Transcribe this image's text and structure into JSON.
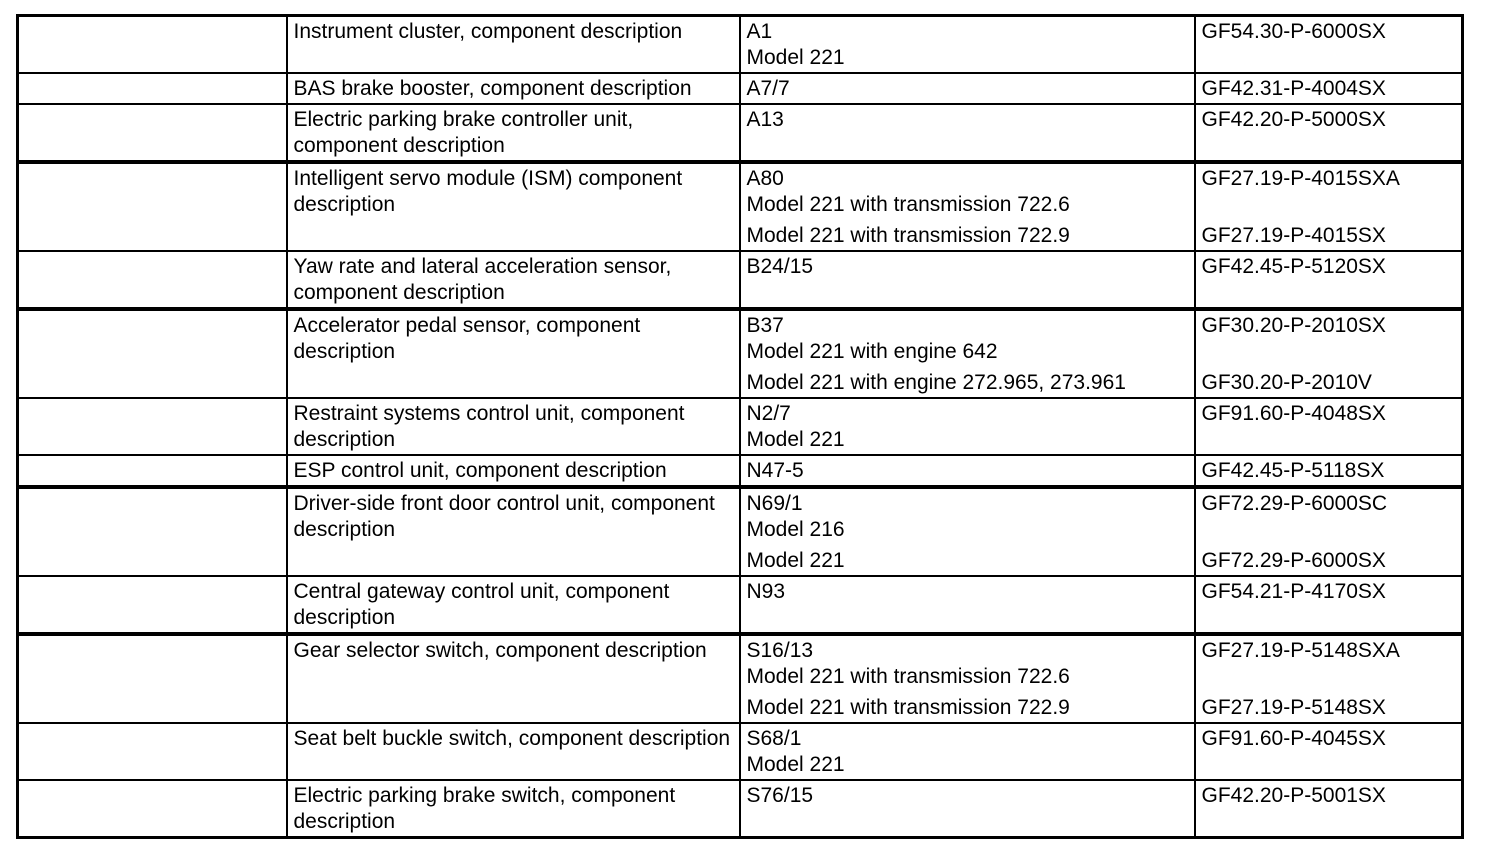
{
  "colors": {
    "background": "#ffffff",
    "text": "#000000",
    "border": "#000000"
  },
  "table": {
    "column_names": [
      "empty",
      "component-description",
      "designation-model",
      "document-code"
    ],
    "rows": [
      {
        "description": "Instrument cluster, component description",
        "designation_paragraphs": [
          [
            "A1",
            "Model 221"
          ]
        ],
        "code_paragraphs": [
          [
            "GF54.30-P-6000SX"
          ]
        ],
        "group_start": false
      },
      {
        "description": "BAS brake booster, component description",
        "designation_paragraphs": [
          [
            "A7/7"
          ]
        ],
        "code_paragraphs": [
          [
            "GF42.31-P-4004SX"
          ]
        ],
        "group_start": false
      },
      {
        "description": "Electric parking brake controller unit, component description",
        "designation_paragraphs": [
          [
            "A13"
          ]
        ],
        "code_paragraphs": [
          [
            "GF42.20-P-5000SX"
          ]
        ],
        "group_start": false
      },
      {
        "description": "Intelligent servo module (ISM) component description",
        "designation_paragraphs": [
          [
            "A80",
            "Model 221 with transmission 722.6"
          ],
          [
            "Model 221 with transmission 722.9"
          ]
        ],
        "code_paragraphs": [
          [
            "GF27.19-P-4015SXA",
            ""
          ],
          [
            "GF27.19-P-4015SX"
          ]
        ],
        "group_start": true
      },
      {
        "description": "Yaw rate and lateral acceleration sensor, component description",
        "designation_paragraphs": [
          [
            "B24/15"
          ]
        ],
        "code_paragraphs": [
          [
            "GF42.45-P-5120SX"
          ]
        ],
        "group_start": false
      },
      {
        "description": "Accelerator pedal sensor, component description",
        "designation_paragraphs": [
          [
            "B37",
            "Model 221 with engine 642"
          ],
          [
            "Model 221 with engine 272.965, 273.961"
          ]
        ],
        "code_paragraphs": [
          [
            "GF30.20-P-2010SX",
            ""
          ],
          [
            "GF30.20-P-2010V"
          ]
        ],
        "group_start": true
      },
      {
        "description": "Restraint systems control unit, component description",
        "designation_paragraphs": [
          [
            "N2/7",
            "Model 221"
          ]
        ],
        "code_paragraphs": [
          [
            "GF91.60-P-4048SX"
          ]
        ],
        "group_start": false
      },
      {
        "description": "ESP control unit, component description",
        "designation_paragraphs": [
          [
            "N47-5"
          ]
        ],
        "code_paragraphs": [
          [
            "GF42.45-P-5118SX"
          ]
        ],
        "group_start": false
      },
      {
        "description": "Driver-side front door control unit, component description",
        "designation_paragraphs": [
          [
            "N69/1",
            "Model 216"
          ],
          [
            "Model 221"
          ]
        ],
        "code_paragraphs": [
          [
            "GF72.29-P-6000SC",
            ""
          ],
          [
            "GF72.29-P-6000SX"
          ]
        ],
        "group_start": true
      },
      {
        "description": "Central gateway control unit, component description",
        "designation_paragraphs": [
          [
            "N93"
          ]
        ],
        "code_paragraphs": [
          [
            "GF54.21-P-4170SX"
          ]
        ],
        "group_start": false
      },
      {
        "description": "Gear selector switch, component description",
        "designation_paragraphs": [
          [
            "S16/13",
            "Model 221 with transmission 722.6"
          ],
          [
            "Model 221 with transmission 722.9"
          ]
        ],
        "code_paragraphs": [
          [
            "GF27.19-P-5148SXA",
            ""
          ],
          [
            "GF27.19-P-5148SX"
          ]
        ],
        "group_start": true
      },
      {
        "description": "Seat belt buckle switch, component description",
        "designation_paragraphs": [
          [
            "S68/1",
            "Model 221"
          ]
        ],
        "code_paragraphs": [
          [
            "GF91.60-P-4045SX"
          ]
        ],
        "group_start": false
      },
      {
        "description": "Electric parking brake switch, component description",
        "designation_paragraphs": [
          [
            "S76/15"
          ]
        ],
        "code_paragraphs": [
          [
            "GF42.20-P-5001SX"
          ]
        ],
        "group_start": false
      }
    ]
  }
}
